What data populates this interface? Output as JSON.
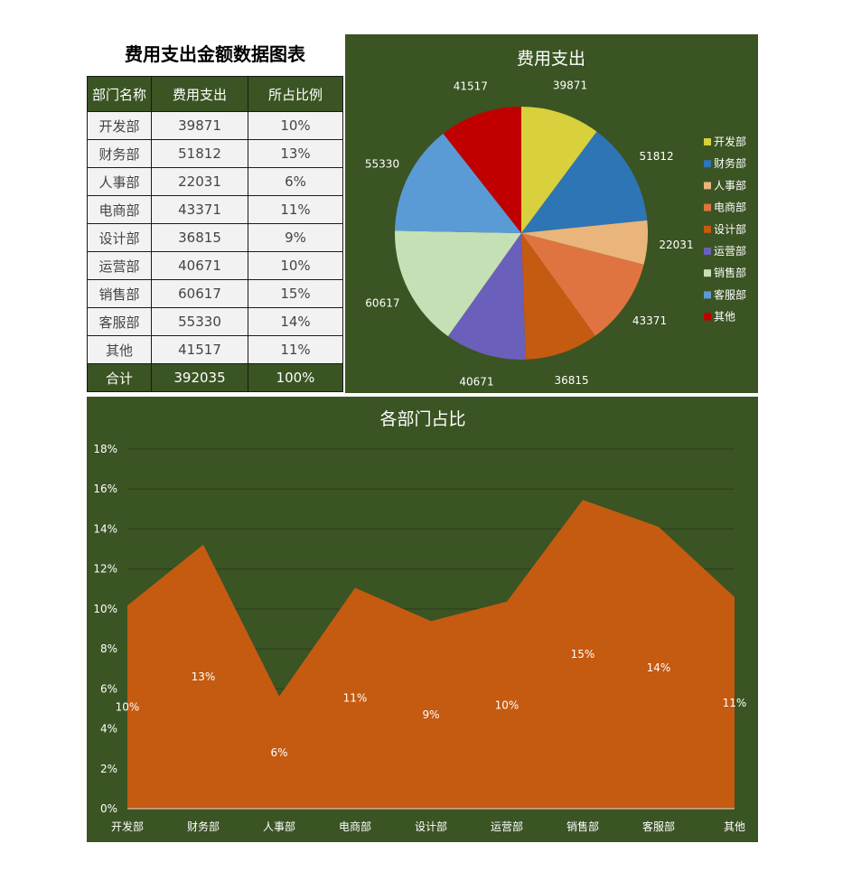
{
  "title": "费用支出金额数据图表",
  "table": {
    "headers": [
      "部门名称",
      "费用支出",
      "所占比例"
    ],
    "rows": [
      {
        "dept": "开发部",
        "amount": "39871",
        "pct": "10%"
      },
      {
        "dept": "财务部",
        "amount": "51812",
        "pct": "13%"
      },
      {
        "dept": "人事部",
        "amount": "22031",
        "pct": "6%"
      },
      {
        "dept": "电商部",
        "amount": "43371",
        "pct": "11%"
      },
      {
        "dept": "设计部",
        "amount": "36815",
        "pct": "9%"
      },
      {
        "dept": "运营部",
        "amount": "40671",
        "pct": "10%"
      },
      {
        "dept": "销售部",
        "amount": "60617",
        "pct": "15%"
      },
      {
        "dept": "客服部",
        "amount": "55330",
        "pct": "14%"
      },
      {
        "dept": "其他",
        "amount": "41517",
        "pct": "11%"
      }
    ],
    "total": {
      "dept": "合计",
      "amount": "392035",
      "pct": "100%"
    }
  },
  "colors": {
    "panel_bg": "#3a5423",
    "area_fill": "#c55a11",
    "pie": [
      "#d8d03c",
      "#2e75b6",
      "#e9b57a",
      "#e07440",
      "#c55a11",
      "#6b5fbc",
      "#c5e0b4",
      "#5b9bd5",
      "#c00000"
    ]
  },
  "chart_data": [
    {
      "type": "pie",
      "title": "费用支出",
      "categories": [
        "开发部",
        "财务部",
        "人事部",
        "电商部",
        "设计部",
        "运营部",
        "销售部",
        "客服部",
        "其他"
      ],
      "values": [
        39871,
        51812,
        22031,
        43371,
        36815,
        40671,
        60617,
        55330,
        41517
      ],
      "legend": "right",
      "data_labels": [
        "39871",
        "51812",
        "22031",
        "43371",
        "36815",
        "40671",
        "60617",
        "55330",
        "41517"
      ]
    },
    {
      "type": "area",
      "title": "各部门占比",
      "categories": [
        "开发部",
        "财务部",
        "人事部",
        "电商部",
        "设计部",
        "运营部",
        "销售部",
        "客服部",
        "其他"
      ],
      "values": [
        0.1017,
        0.1322,
        0.0562,
        0.1106,
        0.0939,
        0.1037,
        0.1546,
        0.1411,
        0.1059
      ],
      "data_labels": [
        "10%",
        "13%",
        "6%",
        "11%",
        "9%",
        "10%",
        "15%",
        "14%",
        "11%"
      ],
      "ylim": [
        0,
        0.18
      ],
      "yticks": [
        "0%",
        "2%",
        "4%",
        "6%",
        "8%",
        "10%",
        "12%",
        "14%",
        "16%",
        "18%"
      ],
      "grid": true
    }
  ]
}
